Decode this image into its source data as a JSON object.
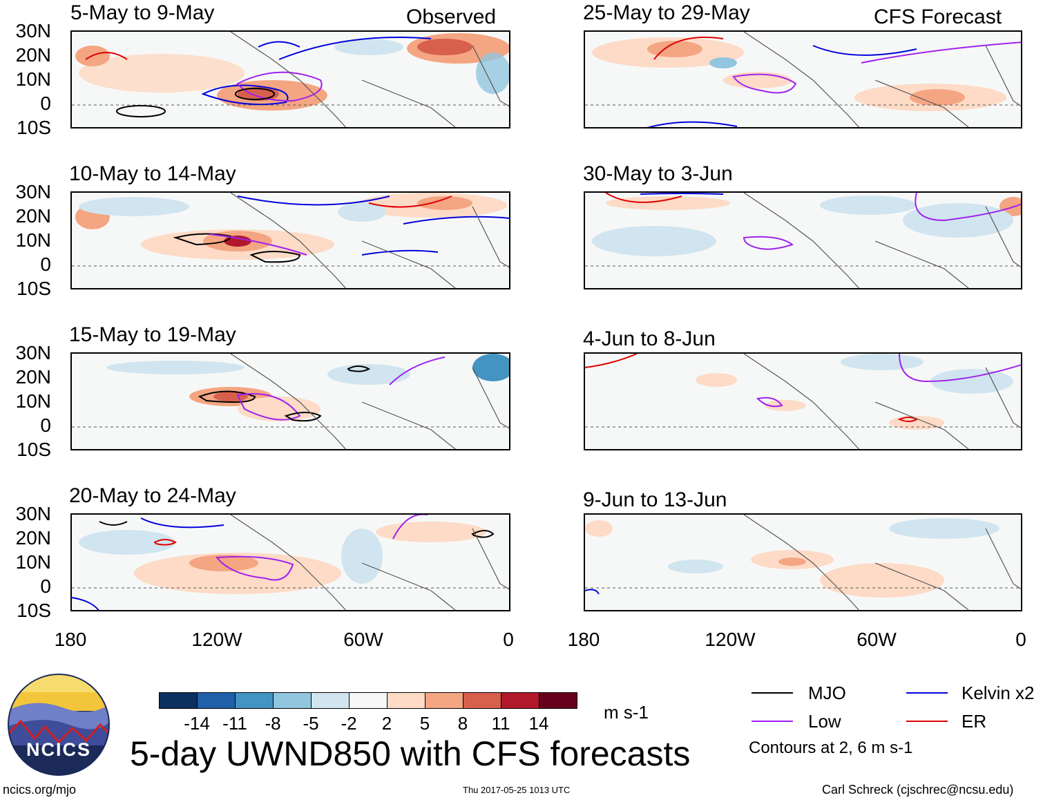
{
  "header": {
    "observed_label": "Observed",
    "forecast_label": "CFS Forecast"
  },
  "panels_left": [
    {
      "title": "5-May to 9-May"
    },
    {
      "title": "10-May to 14-May"
    },
    {
      "title": "15-May to 19-May"
    },
    {
      "title": "20-May to 24-May"
    }
  ],
  "panels_right": [
    {
      "title": "25-May to 29-May"
    },
    {
      "title": "30-May to 3-Jun"
    },
    {
      "title": "4-Jun to 8-Jun"
    },
    {
      "title": "9-Jun to 13-Jun"
    }
  ],
  "lat_labels": [
    "30N",
    "20N",
    "10N",
    "0",
    "10S"
  ],
  "lon_labels": [
    "180",
    "120W",
    "60W",
    "0"
  ],
  "colorbar": {
    "colors": [
      "#0b2f5e",
      "#1f60a8",
      "#4393c3",
      "#92c5de",
      "#d1e5f0",
      "#f7f7f7",
      "#fddbc7",
      "#f4a582",
      "#d6604d",
      "#b2182b",
      "#67001f"
    ],
    "tick_labels": [
      "-14",
      "-11",
      "-8",
      "-5",
      "-2",
      "2",
      "5",
      "8",
      "11",
      "14"
    ],
    "units": "m s-1"
  },
  "legend": {
    "mjo": {
      "label": "MJO",
      "color": "#000000"
    },
    "kelvin": {
      "label": "Kelvin x2",
      "color": "#0000dd"
    },
    "low": {
      "label": "Low",
      "color": "#a020f0"
    },
    "er": {
      "label": "ER",
      "color": "#e00000"
    },
    "note": "Contours at 2, 6 m s-1"
  },
  "main_title": "5-day UWND850 with CFS forecasts",
  "logo": {
    "text": "NCICS"
  },
  "footer": {
    "url": "ncics.org/mjo",
    "timestamp": "Thu 2017-05-25 1013 UTC",
    "credit": "Carl Schreck (cjschrec@ncsu.edu)"
  }
}
